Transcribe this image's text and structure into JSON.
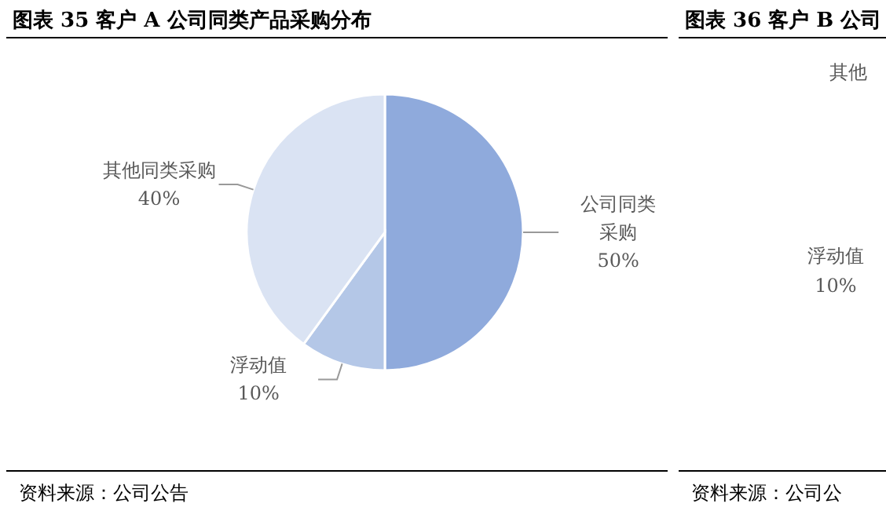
{
  "chart_data": [
    {
      "type": "pie",
      "title": "图表 35 客户 A 公司同类产品采购分布",
      "categories": [
        "公司同类采购",
        "浮动值",
        "其他同类采购"
      ],
      "values": [
        50,
        10,
        40
      ],
      "value_labels": [
        "50%",
        "10%",
        "40%"
      ],
      "colors": [
        "#8faadc",
        "#b4c7e7",
        "#dae3f3"
      ],
      "annotations": [
        "资料来源：公司公告"
      ]
    },
    {
      "type": "other",
      "title": "图表 36 客户 B 公司",
      "annotations": [
        "其他",
        "浮动值",
        "10%",
        "资料来源：公司公"
      ]
    }
  ]
}
